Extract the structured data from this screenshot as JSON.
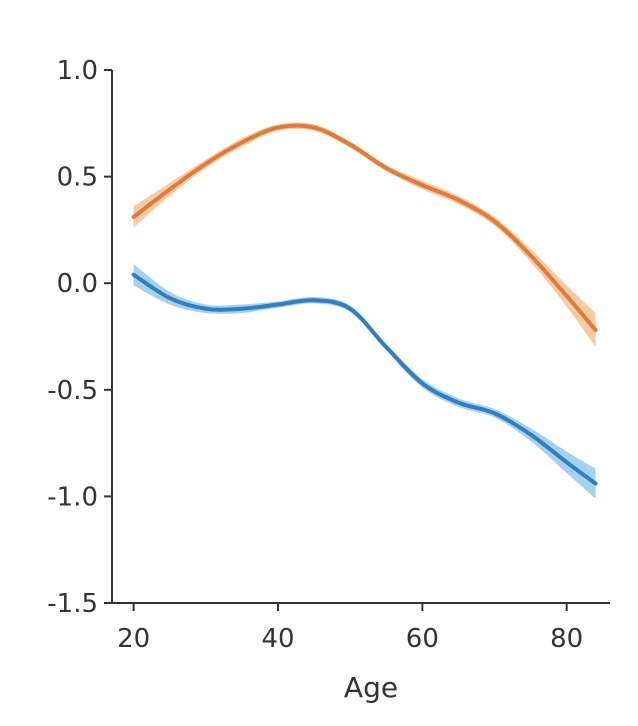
{
  "chart_data": {
    "type": "line",
    "title": "",
    "xlabel": "Age",
    "ylabel": "",
    "xlim": [
      17,
      86
    ],
    "ylim": [
      -1.5,
      1.0
    ],
    "x_ticks": [
      20,
      40,
      60,
      80
    ],
    "y_ticks": [
      1.0,
      0.5,
      0.0,
      -0.5,
      -1.0,
      -1.5
    ],
    "x_tick_labels": [
      "20",
      "40",
      "60",
      "80"
    ],
    "y_tick_labels": [
      "1.0",
      "0.5",
      "0.0",
      "-0.5",
      "-1.0",
      "-1.5"
    ],
    "grid": false,
    "legend": "none",
    "series": [
      {
        "color": "#e07b39",
        "band_color": "#f2b37f",
        "x": [
          20,
          25,
          30,
          35,
          40,
          45,
          50,
          55,
          60,
          65,
          70,
          75,
          80,
          84
        ],
        "values": [
          0.31,
          0.44,
          0.56,
          0.66,
          0.73,
          0.73,
          0.65,
          0.54,
          0.46,
          0.39,
          0.29,
          0.13,
          -0.06,
          -0.22
        ],
        "band_halfwidth": [
          0.05,
          0.03,
          0.02,
          0.02,
          0.015,
          0.015,
          0.015,
          0.015,
          0.02,
          0.02,
          0.02,
          0.03,
          0.05,
          0.08
        ]
      },
      {
        "color": "#2f7fc1",
        "band_color": "#7fbde8",
        "x": [
          20,
          25,
          30,
          35,
          40,
          45,
          50,
          55,
          60,
          65,
          70,
          75,
          80,
          84
        ],
        "values": [
          0.04,
          -0.07,
          -0.12,
          -0.12,
          -0.1,
          -0.08,
          -0.12,
          -0.3,
          -0.47,
          -0.56,
          -0.61,
          -0.71,
          -0.84,
          -0.94
        ],
        "band_halfwidth": [
          0.05,
          0.03,
          0.02,
          0.02,
          0.015,
          0.015,
          0.015,
          0.015,
          0.02,
          0.02,
          0.02,
          0.03,
          0.05,
          0.07
        ]
      }
    ]
  }
}
